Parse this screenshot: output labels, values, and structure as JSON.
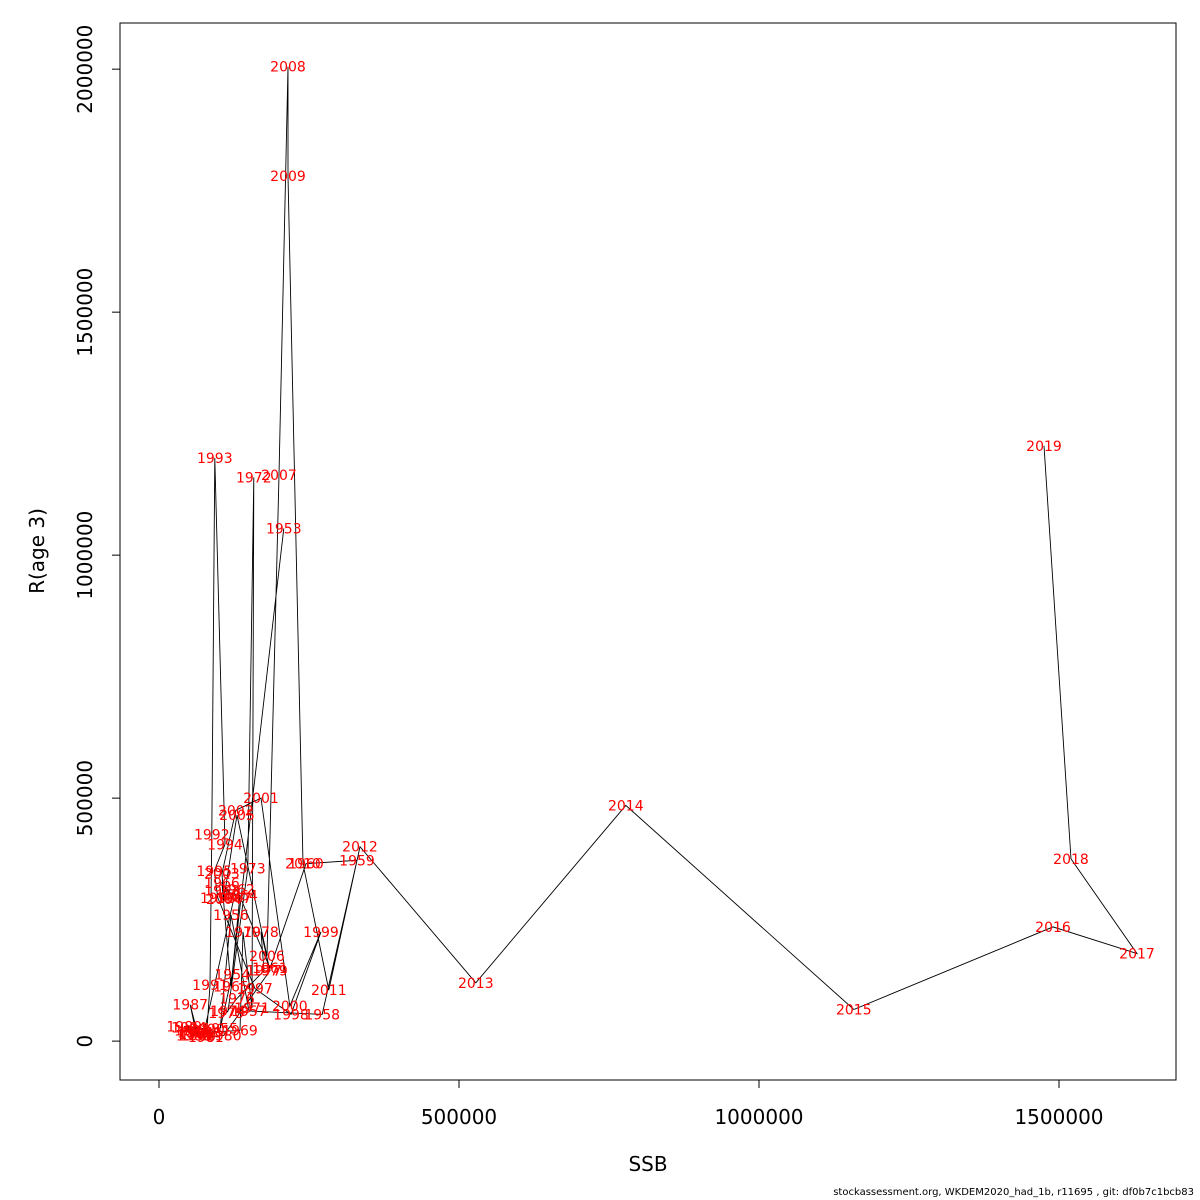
{
  "chart_data": {
    "type": "line",
    "xlabel": "SSB",
    "ylabel": "R(age 3)",
    "xlim": [
      -65000,
      1695000
    ],
    "ylim": [
      -80000,
      2095000
    ],
    "x_ticks": [
      0,
      500000,
      1000000,
      1500000
    ],
    "x_tick_labels": [
      "0",
      "500000",
      "1000000",
      "1500000"
    ],
    "y_ticks": [
      0,
      500000,
      1000000,
      1500000,
      2000000
    ],
    "y_tick_labels": [
      "0",
      "500000",
      "1000000",
      "1500000",
      "2000000"
    ],
    "label_color": "#ff0000",
    "line_color": "#000000",
    "points": [
      {
        "year": "1953",
        "x": 208000,
        "y": 1055000
      },
      {
        "year": "1954",
        "x": 122000,
        "y": 137000
      },
      {
        "year": "1955",
        "x": 102000,
        "y": 26000
      },
      {
        "year": "1956",
        "x": 120000,
        "y": 260000
      },
      {
        "year": "1957",
        "x": 150000,
        "y": 62000
      },
      {
        "year": "1958",
        "x": 272000,
        "y": 55000
      },
      {
        "year": "1959",
        "x": 330000,
        "y": 372000
      },
      {
        "year": "1960",
        "x": 245000,
        "y": 365000
      },
      {
        "year": "1961",
        "x": 185000,
        "y": 150000
      },
      {
        "year": "1962",
        "x": 130000,
        "y": 312000
      },
      {
        "year": "1963",
        "x": 105000,
        "y": 310000
      },
      {
        "year": "1964",
        "x": 135000,
        "y": 300000
      },
      {
        "year": "1965",
        "x": 120000,
        "y": 112000
      },
      {
        "year": "1966",
        "x": 105000,
        "y": 325000
      },
      {
        "year": "1967",
        "x": 125000,
        "y": 295000
      },
      {
        "year": "1968",
        "x": 75000,
        "y": 18000
      },
      {
        "year": "1969",
        "x": 135000,
        "y": 22000
      },
      {
        "year": "1970",
        "x": 140000,
        "y": 225000
      },
      {
        "year": "1971",
        "x": 155000,
        "y": 68000
      },
      {
        "year": "1972",
        "x": 158000,
        "y": 1160000
      },
      {
        "year": "1973",
        "x": 148000,
        "y": 355000
      },
      {
        "year": "1974",
        "x": 115000,
        "y": 62000
      },
      {
        "year": "1975",
        "x": 112000,
        "y": 58000
      },
      {
        "year": "1976",
        "x": 130000,
        "y": 88000
      },
      {
        "year": "1977",
        "x": 175000,
        "y": 145000
      },
      {
        "year": "1978",
        "x": 170000,
        "y": 225000
      },
      {
        "year": "1979",
        "x": 185000,
        "y": 145000
      },
      {
        "year": "1980",
        "x": 108000,
        "y": 12000
      },
      {
        "year": "1981",
        "x": 78000,
        "y": 8000
      },
      {
        "year": "1982",
        "x": 55000,
        "y": 22000
      },
      {
        "year": "1983",
        "x": 60000,
        "y": 18000
      },
      {
        "year": "1984",
        "x": 50000,
        "y": 28000
      },
      {
        "year": "1985",
        "x": 58000,
        "y": 12000
      },
      {
        "year": "1986",
        "x": 62000,
        "y": 15000
      },
      {
        "year": "1987",
        "x": 52000,
        "y": 75000
      },
      {
        "year": "1988",
        "x": 65000,
        "y": 12000
      },
      {
        "year": "1989",
        "x": 42000,
        "y": 30000
      },
      {
        "year": "1990",
        "x": 80000,
        "y": 25000
      },
      {
        "year": "1991",
        "x": 85000,
        "y": 115000
      },
      {
        "year": "1992",
        "x": 88000,
        "y": 425000
      },
      {
        "year": "1993",
        "x": 93000,
        "y": 1200000
      },
      {
        "year": "1994",
        "x": 110000,
        "y": 405000
      },
      {
        "year": "1995",
        "x": 92000,
        "y": 350000
      },
      {
        "year": "1996",
        "x": 98000,
        "y": 295000
      },
      {
        "year": "1997",
        "x": 160000,
        "y": 108000
      },
      {
        "year": "1998",
        "x": 220000,
        "y": 55000
      },
      {
        "year": "1999",
        "x": 270000,
        "y": 225000
      },
      {
        "year": "2000",
        "x": 218000,
        "y": 72000
      },
      {
        "year": "2001",
        "x": 170000,
        "y": 500000
      },
      {
        "year": "2002",
        "x": 128000,
        "y": 475000
      },
      {
        "year": "2003",
        "x": 105000,
        "y": 345000
      },
      {
        "year": "2004",
        "x": 108000,
        "y": 292000
      },
      {
        "year": "2005",
        "x": 130000,
        "y": 465000
      },
      {
        "year": "2006",
        "x": 180000,
        "y": 175000
      },
      {
        "year": "2007",
        "x": 200000,
        "y": 1165000
      },
      {
        "year": "2008",
        "x": 215000,
        "y": 2005000
      },
      {
        "year": "2009",
        "x": 215000,
        "y": 1780000
      },
      {
        "year": "2010",
        "x": 240000,
        "y": 365000
      },
      {
        "year": "2011",
        "x": 283000,
        "y": 105000
      },
      {
        "year": "2012",
        "x": 335000,
        "y": 400000
      },
      {
        "year": "2013",
        "x": 528000,
        "y": 120000
      },
      {
        "year": "2014",
        "x": 778000,
        "y": 485000
      },
      {
        "year": "2015",
        "x": 1158000,
        "y": 65000
      },
      {
        "year": "2016",
        "x": 1490000,
        "y": 235000
      },
      {
        "year": "2017",
        "x": 1630000,
        "y": 180000
      },
      {
        "year": "2018",
        "x": 1520000,
        "y": 375000
      },
      {
        "year": "2019",
        "x": 1475000,
        "y": 1225000
      }
    ]
  },
  "footer": "stockassessment.org, WKDEM2020_had_1b, r11695 , git: df0b7c1bcb83"
}
